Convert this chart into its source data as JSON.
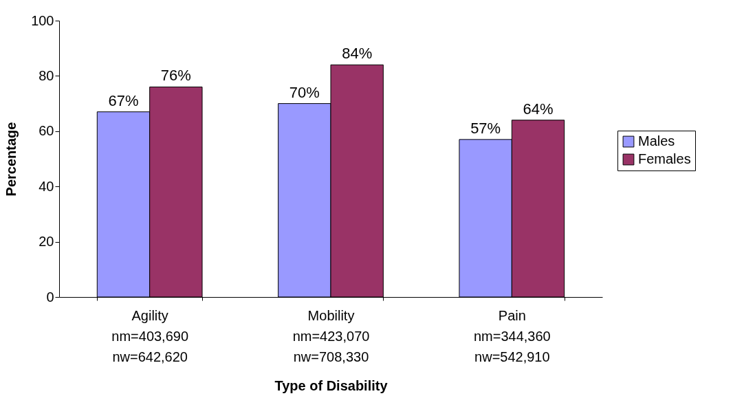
{
  "chart_data": {
    "type": "bar",
    "xlabel": "Type of Disability",
    "ylabel": "Percentage",
    "categories": [
      "Agility\nnm=403,690\nnw=642,620",
      "Mobility\nnm=423,070\nnw=708,330",
      "Pain\nnm=344,360\nnw=542,910"
    ],
    "series": [
      {
        "name": "Males",
        "color": "#9999ff",
        "values": [
          67,
          70,
          57
        ],
        "value_labels": [
          "67%",
          "70%",
          "57%"
        ]
      },
      {
        "name": "Females",
        "color": "#993366",
        "values": [
          76,
          84,
          64
        ],
        "value_labels": [
          "76%",
          "84%",
          "64%"
        ]
      }
    ],
    "ylim": [
      0,
      100
    ],
    "yticks": [
      0,
      20,
      40,
      60,
      80,
      100
    ],
    "grid": false,
    "legend": "right"
  }
}
